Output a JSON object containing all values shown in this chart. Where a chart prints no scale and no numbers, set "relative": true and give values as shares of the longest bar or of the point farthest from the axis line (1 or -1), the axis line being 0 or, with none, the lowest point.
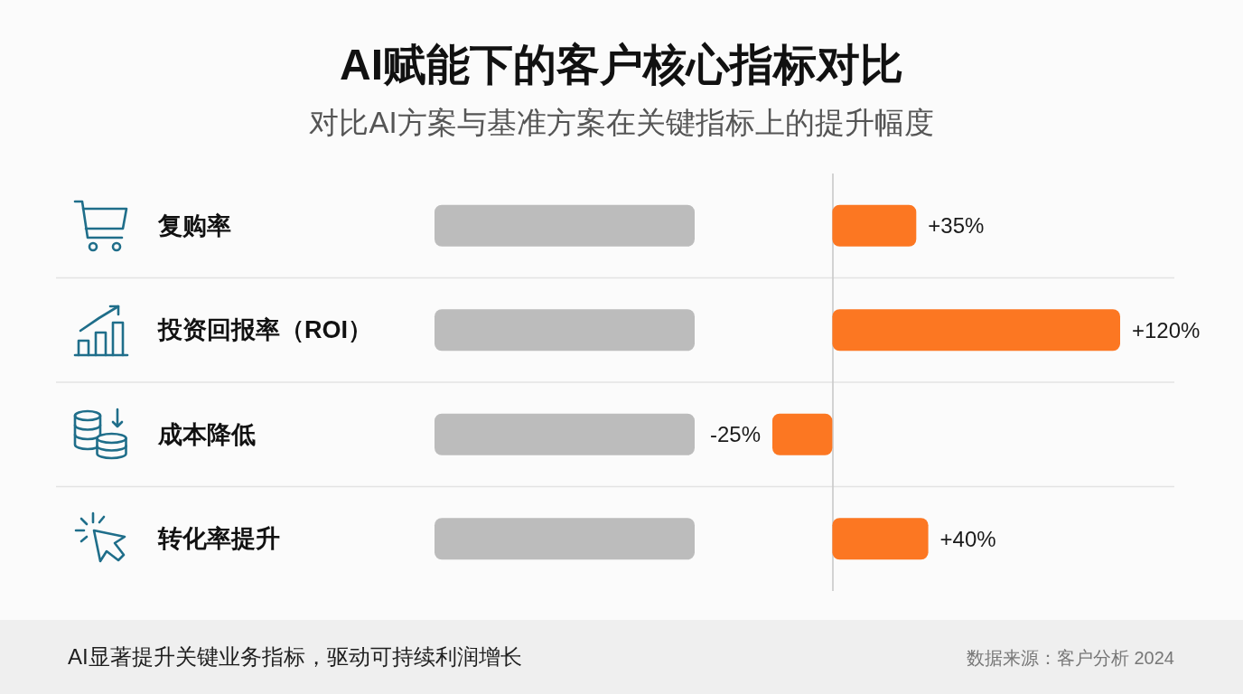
{
  "chart_data": [
    {
      "type": "bar",
      "orientation": "horizontal",
      "title": "AI赋能下的客户核心指标对比",
      "subtitle": "对比AI方案与基准方案在关键指标上的提升幅度",
      "categories": [
        "复购率",
        "投资回报率（ROI）",
        "成本降低",
        "转化率提升"
      ],
      "series": [
        {
          "color": "#bcbcbc",
          "values": [
            1,
            1,
            1,
            1
          ]
        }
      ],
      "relative": true,
      "grid": "y",
      "annotations": [
        "AI显著提升关键业务指标，驱动可持续利润增长",
        "数据来源：客户分析 2024"
      ]
    },
    {
      "type": "bar",
      "orientation": "horizontal",
      "categories": [
        null,
        null,
        null,
        null
      ],
      "series": [
        {
          "color": "#fc7722",
          "values": [
            35,
            120,
            -25,
            40
          ],
          "value_labels": [
            "+35%",
            "+120%",
            "-25%",
            "+40%"
          ]
        }
      ],
      "grid": "y",
      "tick_labels": false
    }
  ]
}
